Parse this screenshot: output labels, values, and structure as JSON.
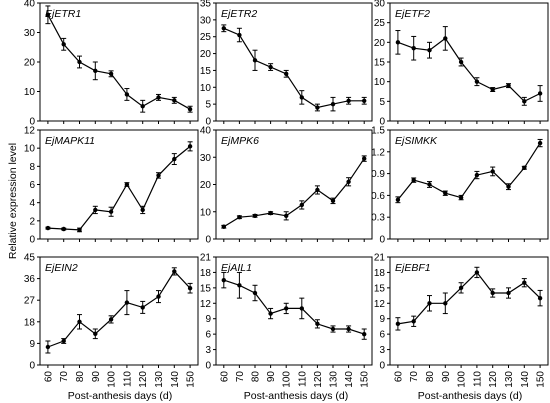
{
  "figure": {
    "ylabel": "Relative expression level",
    "xlabel": "Post-anthesis days (d)"
  },
  "chart_data": [
    {
      "type": "line",
      "gene": "EjETR1",
      "x": [
        60,
        70,
        80,
        90,
        100,
        110,
        120,
        130,
        140,
        150
      ],
      "values": [
        36,
        26,
        20,
        17,
        16,
        9,
        5,
        8,
        7,
        4
      ],
      "errors": [
        3,
        2,
        2,
        3,
        1,
        2,
        2,
        1,
        1,
        1
      ],
      "ylim": [
        0,
        40
      ],
      "yticks": [
        0,
        10,
        20,
        30,
        40
      ],
      "yticklabels": [
        "0",
        "10",
        "20",
        "30",
        "40"
      ]
    },
    {
      "type": "line",
      "gene": "EjETR2",
      "x": [
        60,
        70,
        80,
        90,
        100,
        110,
        120,
        130,
        140,
        150
      ],
      "values": [
        27.5,
        25.5,
        18,
        16,
        14,
        7,
        4,
        5,
        6,
        6
      ],
      "errors": [
        1,
        2,
        3,
        1,
        1,
        2,
        1,
        2,
        1,
        1
      ],
      "ylim": [
        0,
        35
      ],
      "yticks": [
        0,
        5,
        10,
        15,
        20,
        25,
        30,
        35
      ],
      "yticklabels": [
        "0",
        "5",
        "10",
        "15",
        "20",
        "25",
        "30",
        "35"
      ]
    },
    {
      "type": "line",
      "gene": "EjETF2",
      "x": [
        60,
        70,
        80,
        90,
        100,
        110,
        120,
        130,
        140,
        150
      ],
      "values": [
        20,
        18.5,
        18,
        21,
        15,
        10,
        8,
        9,
        5,
        7
      ],
      "errors": [
        3,
        3,
        2,
        3,
        1,
        1,
        0.5,
        0.5,
        1,
        2
      ],
      "ylim": [
        0,
        30
      ],
      "yticks": [
        0,
        5,
        10,
        15,
        20,
        25,
        30
      ],
      "yticklabels": [
        "0",
        "5",
        "10",
        "15",
        "20",
        "25",
        "30"
      ]
    },
    {
      "type": "line",
      "gene": "EjMAPK11",
      "x": [
        60,
        70,
        80,
        90,
        100,
        110,
        120,
        130,
        140,
        150
      ],
      "values": [
        1.2,
        1.1,
        1,
        3.2,
        3,
        6,
        3.2,
        7,
        8.8,
        10.2
      ],
      "errors": [
        0.1,
        0.1,
        0.2,
        0.4,
        0.5,
        0.2,
        0.4,
        0.3,
        0.6,
        0.5
      ],
      "ylim": [
        0,
        12
      ],
      "yticks": [
        0,
        2,
        4,
        6,
        8,
        10,
        12
      ],
      "yticklabels": [
        "0",
        "2",
        "4",
        "6",
        "8",
        "10",
        "12"
      ]
    },
    {
      "type": "line",
      "gene": "EjMPK6",
      "x": [
        60,
        70,
        80,
        90,
        100,
        110,
        120,
        130,
        140,
        150
      ],
      "values": [
        4.5,
        8,
        8.5,
        9.5,
        8.5,
        12.5,
        18,
        14,
        21,
        29.5
      ],
      "errors": [
        0.5,
        0.5,
        0.5,
        0.5,
        1.5,
        1.5,
        1.5,
        1,
        1.5,
        1
      ],
      "ylim": [
        0,
        40
      ],
      "yticks": [
        0,
        10,
        20,
        30,
        40
      ],
      "yticklabels": [
        "0",
        "10",
        "20",
        "30",
        "40"
      ]
    },
    {
      "type": "line",
      "gene": "EjSIMKK",
      "x": [
        60,
        70,
        80,
        90,
        100,
        110,
        120,
        130,
        140,
        150
      ],
      "values": [
        0.54,
        0.81,
        0.75,
        0.63,
        0.57,
        0.88,
        0.93,
        0.72,
        0.98,
        1.32
      ],
      "errors": [
        0.04,
        0.03,
        0.04,
        0.03,
        0.03,
        0.05,
        0.06,
        0.04,
        0.02,
        0.05
      ],
      "ylim": [
        0,
        1.5
      ],
      "yticks": [
        0,
        0.3,
        0.6,
        0.9,
        1.2,
        1.5
      ],
      "yticklabels": [
        "0",
        "0.3",
        "0.6",
        "0.9",
        "1.2",
        "1.5"
      ]
    },
    {
      "type": "line",
      "gene": "EjEIN2",
      "x": [
        60,
        70,
        80,
        90,
        100,
        110,
        120,
        130,
        140,
        150
      ],
      "values": [
        7.5,
        10,
        18,
        13,
        19,
        26,
        24,
        28.5,
        39,
        32
      ],
      "errors": [
        2.5,
        1,
        3,
        2,
        1.5,
        5,
        2.5,
        2.5,
        1.5,
        2
      ],
      "ylim": [
        0,
        45
      ],
      "yticks": [
        0,
        9,
        18,
        27,
        36,
        45
      ],
      "yticklabels": [
        "0",
        "9",
        "18",
        "27",
        "36",
        "45"
      ]
    },
    {
      "type": "line",
      "gene": "EjAIL1",
      "x": [
        60,
        70,
        80,
        90,
        100,
        110,
        120,
        130,
        140,
        150
      ],
      "values": [
        16.5,
        15.5,
        14,
        10,
        11,
        11,
        8,
        7,
        7,
        6
      ],
      "errors": [
        1.5,
        2.5,
        1.5,
        1,
        1,
        2,
        0.8,
        0.6,
        0.6,
        1
      ],
      "ylim": [
        0,
        21
      ],
      "yticks": [
        0,
        3,
        6,
        9,
        12,
        15,
        18,
        21
      ],
      "yticklabels": [
        "0",
        "3",
        "6",
        "9",
        "12",
        "15",
        "18",
        "21"
      ]
    },
    {
      "type": "line",
      "gene": "EjEBF1",
      "x": [
        60,
        70,
        80,
        90,
        100,
        110,
        120,
        130,
        140,
        150
      ],
      "values": [
        8,
        8.5,
        12,
        12,
        15,
        18,
        14,
        14,
        16,
        13
      ],
      "errors": [
        1.2,
        1,
        1.5,
        2,
        1,
        1,
        0.8,
        1,
        0.8,
        1.5
      ],
      "ylim": [
        0,
        21
      ],
      "yticks": [
        0,
        3,
        6,
        9,
        12,
        15,
        18,
        21
      ],
      "yticklabels": [
        "0",
        "3",
        "6",
        "9",
        "12",
        "15",
        "18",
        "21"
      ]
    }
  ]
}
